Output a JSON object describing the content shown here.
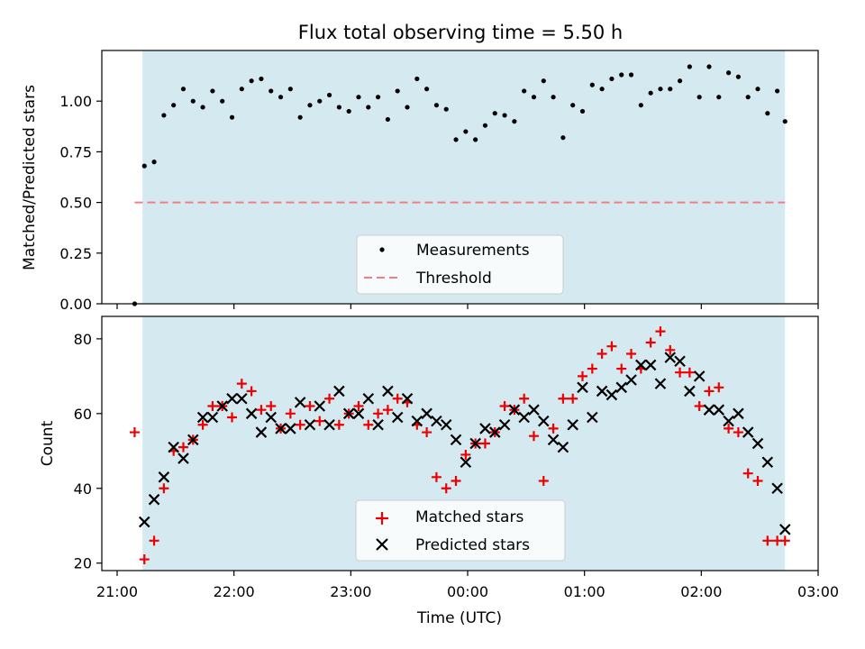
{
  "title": "Flux total observing time = 5.50 h",
  "xlabel": "Time (UTC)",
  "colors": {
    "shade": "#d3e9ef",
    "threshold": "#f08080",
    "matched": "#ee0000",
    "predicted": "#000000",
    "measurement": "#000000"
  },
  "chart_data": [
    {
      "type": "scatter",
      "ylabel": "Matched/Predicted stars",
      "ylim": [
        0,
        1.25
      ],
      "yticks": [
        0.0,
        0.25,
        0.5,
        0.75,
        1.0
      ],
      "ytick_labels": [
        "0.00",
        "0.25",
        "0.50",
        "0.75",
        "1.00"
      ],
      "shaded_span": [
        "21:13",
        "02:43"
      ],
      "threshold": 0.5,
      "threshold_span": [
        "21:09",
        "02:43"
      ],
      "legend": [
        "Measurements",
        "Threshold"
      ],
      "legend_loc": "lower center",
      "x": [
        "21:09",
        "21:14",
        "21:19",
        "21:24",
        "21:29",
        "21:34",
        "21:39",
        "21:44",
        "21:49",
        "21:54",
        "21:59",
        "22:04",
        "22:09",
        "22:14",
        "22:19",
        "22:24",
        "22:29",
        "22:34",
        "22:39",
        "22:44",
        "22:49",
        "22:54",
        "22:59",
        "23:04",
        "23:09",
        "23:14",
        "23:19",
        "23:24",
        "23:29",
        "23:34",
        "23:39",
        "23:44",
        "23:49",
        "23:54",
        "23:59",
        "00:04",
        "00:09",
        "00:14",
        "00:19",
        "00:24",
        "00:29",
        "00:34",
        "00:39",
        "00:44",
        "00:49",
        "00:54",
        "00:59",
        "01:04",
        "01:09",
        "01:14",
        "01:19",
        "01:24",
        "01:29",
        "01:34",
        "01:39",
        "01:44",
        "01:49",
        "01:54",
        "01:59",
        "02:04",
        "02:09",
        "02:14",
        "02:19",
        "02:24",
        "02:29",
        "02:34",
        "02:39",
        "02:43"
      ],
      "series": [
        {
          "name": "Measurements",
          "values": [
            0.0,
            0.68,
            0.7,
            0.93,
            0.98,
            1.06,
            1.0,
            0.97,
            1.05,
            1.0,
            0.92,
            1.06,
            1.1,
            1.11,
            1.05,
            1.02,
            1.06,
            0.92,
            0.98,
            1.0,
            1.03,
            0.97,
            0.95,
            1.02,
            0.97,
            1.02,
            0.91,
            1.05,
            0.97,
            1.11,
            1.06,
            0.98,
            0.96,
            0.81,
            0.85,
            0.81,
            0.88,
            0.94,
            0.93,
            0.9,
            1.05,
            1.02,
            1.1,
            1.02,
            0.82,
            0.98,
            0.95,
            1.08,
            1.06,
            1.11,
            1.13,
            1.13,
            0.98,
            1.04,
            1.06,
            1.06,
            1.1,
            1.17,
            1.02,
            1.17,
            1.02,
            1.14,
            1.12,
            1.02,
            1.06,
            0.94,
            1.05,
            0.9
          ]
        }
      ]
    },
    {
      "type": "scatter",
      "ylabel": "Count",
      "ylim": [
        18,
        86
      ],
      "yticks": [
        20,
        40,
        60,
        80
      ],
      "ytick_labels": [
        "20",
        "40",
        "60",
        "80"
      ],
      "xticks": [
        "21:00",
        "22:00",
        "23:00",
        "00:00",
        "01:00",
        "02:00",
        "03:00"
      ],
      "shaded_span": [
        "21:13",
        "02:43"
      ],
      "legend": [
        "Matched stars",
        "Predicted stars"
      ],
      "legend_loc": "lower center",
      "x": [
        "21:09",
        "21:14",
        "21:19",
        "21:24",
        "21:29",
        "21:34",
        "21:39",
        "21:44",
        "21:49",
        "21:54",
        "21:59",
        "22:04",
        "22:09",
        "22:14",
        "22:19",
        "22:24",
        "22:29",
        "22:34",
        "22:39",
        "22:44",
        "22:49",
        "22:54",
        "22:59",
        "23:04",
        "23:09",
        "23:14",
        "23:19",
        "23:24",
        "23:29",
        "23:34",
        "23:39",
        "23:44",
        "23:49",
        "23:54",
        "23:59",
        "00:04",
        "00:09",
        "00:14",
        "00:19",
        "00:24",
        "00:29",
        "00:34",
        "00:39",
        "00:44",
        "00:49",
        "00:54",
        "00:59",
        "01:04",
        "01:09",
        "01:14",
        "01:19",
        "01:24",
        "01:29",
        "01:34",
        "01:39",
        "01:44",
        "01:49",
        "01:54",
        "01:59",
        "02:04",
        "02:09",
        "02:14",
        "02:19",
        "02:24",
        "02:29",
        "02:34",
        "02:39",
        "02:43"
      ],
      "series": [
        {
          "name": "Matched stars",
          "values": [
            55,
            21,
            26,
            40,
            50,
            51,
            53,
            57,
            62,
            62,
            59,
            68,
            66,
            61,
            62,
            56,
            60,
            57,
            62,
            58,
            64,
            57,
            60,
            62,
            57,
            60,
            61,
            64,
            63,
            57,
            55,
            43,
            40,
            42,
            49,
            52,
            52,
            55,
            62,
            61,
            64,
            54,
            42,
            56,
            64,
            64,
            70,
            72,
            76,
            78,
            72,
            76,
            72,
            79,
            82,
            77,
            71,
            71,
            62,
            66,
            67,
            56,
            55,
            44,
            42,
            26,
            26,
            26
          ]
        },
        {
          "name": "Predicted stars",
          "values": [
            null,
            31,
            37,
            43,
            51,
            48,
            53,
            59,
            59,
            62,
            64,
            64,
            60,
            55,
            59,
            56,
            56,
            63,
            57,
            62,
            57,
            66,
            60,
            60,
            64,
            57,
            66,
            59,
            64,
            58,
            60,
            58,
            57,
            53,
            47,
            52,
            56,
            55,
            57,
            61,
            59,
            61,
            58,
            53,
            51,
            57,
            67,
            59,
            66,
            65,
            67,
            69,
            73,
            73,
            68,
            75,
            74,
            66,
            70,
            61,
            61,
            58,
            60,
            55,
            52,
            47,
            40,
            29
          ]
        }
      ]
    }
  ]
}
